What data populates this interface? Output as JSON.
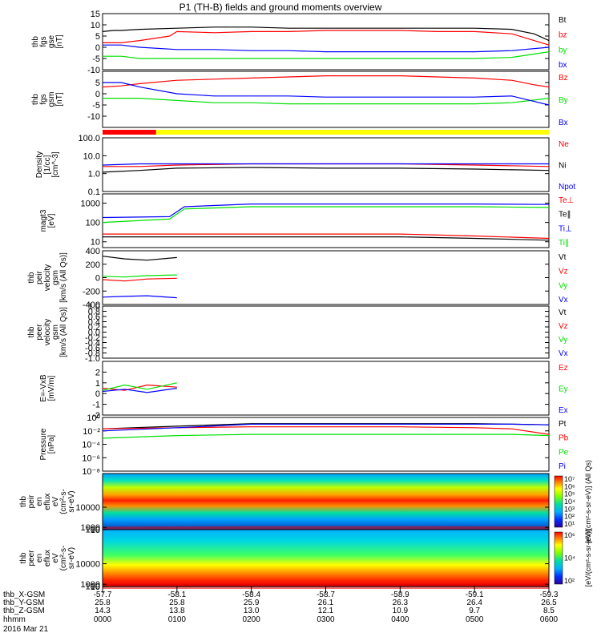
{
  "title": "P1 (TH-B) fields and ground moments overview",
  "colors": {
    "black": "#000000",
    "red": "#ff0000",
    "green": "#00e000",
    "blue": "#0000ff",
    "yellow": "#ffff00"
  },
  "chart_data": [
    {
      "type": "line",
      "id": "fgs_gse",
      "ylabel": [
        "thb",
        "fgs",
        "gse",
        "[nT]"
      ],
      "ylim": [
        -10,
        15
      ],
      "yticks": [
        {
          "v": 15,
          "l": "15"
        },
        {
          "v": 10,
          "l": "10"
        },
        {
          "v": 5,
          "l": "5"
        },
        {
          "v": 0,
          "l": "0"
        },
        {
          "v": -5,
          "l": "-5"
        },
        {
          "v": -10,
          "l": "-10"
        }
      ],
      "series": [
        {
          "name": "Bt",
          "color": "black",
          "x": [
            0,
            0.15,
            0.25,
            0.5,
            1,
            1.5,
            2,
            2.5,
            3,
            3.5,
            4,
            4.5,
            5,
            5.5,
            5.8,
            6
          ],
          "y": [
            7,
            7.5,
            7.5,
            8,
            8.5,
            9,
            9,
            8.5,
            8.5,
            8.5,
            8.5,
            8.5,
            8.5,
            8,
            6,
            3
          ]
        },
        {
          "name": "bz",
          "color": "red",
          "x": [
            0,
            0.25,
            0.5,
            0.9,
            1,
            1.5,
            2,
            2.5,
            3,
            3.5,
            4,
            4.5,
            5,
            5.5,
            5.8,
            6
          ],
          "y": [
            2,
            2,
            3,
            5,
            7,
            6.5,
            7,
            7,
            7.5,
            7.5,
            7.5,
            7,
            7,
            6,
            3,
            1
          ]
        },
        {
          "name": "by",
          "color": "green",
          "x": [
            0,
            0.25,
            0.5,
            1,
            1.5,
            2,
            2.5,
            3,
            3.5,
            4,
            4.5,
            5,
            5.5,
            6
          ],
          "y": [
            -4,
            -4,
            -5,
            -5,
            -5,
            -5,
            -5,
            -5,
            -5,
            -5,
            -5,
            -5,
            -4.5,
            -2
          ]
        },
        {
          "name": "bx",
          "color": "blue",
          "x": [
            0,
            0.25,
            0.5,
            1,
            1.5,
            2,
            2.5,
            3,
            3.5,
            4,
            4.5,
            5,
            5.5,
            6
          ],
          "y": [
            1,
            1,
            0,
            -1,
            -1,
            -1.5,
            -1.5,
            -2,
            -2,
            -2,
            -2,
            -2,
            -1.5,
            0
          ]
        }
      ]
    },
    {
      "type": "line",
      "id": "fgs_gsm",
      "ylabel": [
        "thb",
        "fgs",
        "gsm",
        "[nT]"
      ],
      "ylim": [
        -15,
        10
      ],
      "yticks": [
        {
          "v": 5,
          "l": "5"
        },
        {
          "v": 0,
          "l": "0"
        },
        {
          "v": -5,
          "l": "-5"
        },
        {
          "v": -10,
          "l": "-10"
        }
      ],
      "series": [
        {
          "name": "Bz",
          "color": "red",
          "x": [
            0,
            0.25,
            0.5,
            1,
            1.5,
            2,
            2.5,
            3,
            3.5,
            4,
            4.5,
            5,
            5.5,
            5.8,
            6
          ],
          "y": [
            3,
            3.5,
            4.5,
            6,
            6.5,
            7,
            7.5,
            8,
            8,
            8,
            7.5,
            7,
            6,
            4,
            3
          ]
        },
        {
          "name": "By",
          "color": "green",
          "x": [
            0,
            0.25,
            0.5,
            1,
            1.5,
            2,
            2.5,
            3,
            3.5,
            4,
            4.5,
            5,
            5.5,
            6
          ],
          "y": [
            -2,
            -2,
            -2,
            -3,
            -4,
            -4,
            -4.5,
            -4.5,
            -4.5,
            -4.5,
            -4.5,
            -4.5,
            -4,
            -2
          ]
        },
        {
          "name": "Bx",
          "color": "blue",
          "x": [
            0,
            0.25,
            0.5,
            1,
            1.5,
            2,
            2.5,
            3,
            3.5,
            4,
            4.5,
            5,
            5.5,
            6
          ],
          "y": [
            5,
            5,
            3,
            0,
            -1,
            -1,
            -1,
            -1.5,
            -1.5,
            -1.5,
            -1.5,
            -1.5,
            -1,
            -5
          ]
        }
      ]
    },
    {
      "type": "line",
      "id": "density",
      "log": true,
      "ylabel": [
        "Density",
        "[1/cc]",
        "[cm^-3]"
      ],
      "ylim": [
        0.1,
        100
      ],
      "yticks": [
        {
          "v": 100,
          "l": "100.0"
        },
        {
          "v": 10,
          "l": "10.0"
        },
        {
          "v": 1,
          "l": "1.0"
        },
        {
          "v": 0.1,
          "l": "0.1"
        }
      ],
      "series": [
        {
          "name": "Ne",
          "color": "red",
          "x": [
            0,
            0.5,
            1,
            2,
            3,
            4,
            5,
            6
          ],
          "y": [
            2.5,
            2.5,
            3,
            3.5,
            3.5,
            3.5,
            3,
            2.5
          ]
        },
        {
          "name": "Ni",
          "color": "black",
          "x": [
            0,
            0.5,
            1,
            2,
            3,
            4,
            5,
            6
          ],
          "y": [
            1.2,
            1.5,
            2,
            2.2,
            2,
            2,
            1.8,
            1.5
          ]
        },
        {
          "name": "Npot",
          "color": "blue",
          "x": [
            0,
            0.5,
            1,
            2,
            3,
            4,
            5,
            6
          ],
          "y": [
            3,
            3.5,
            3.5,
            3.5,
            3.5,
            3.5,
            3.5,
            3.5
          ]
        }
      ]
    },
    {
      "type": "line",
      "id": "temp",
      "log": true,
      "ylabel": [
        "magt3",
        "[eV]"
      ],
      "ylim": [
        5,
        3000
      ],
      "yticks": [
        {
          "v": 1000,
          "l": "1000"
        },
        {
          "v": 100,
          "l": "100"
        },
        {
          "v": 10,
          "l": "10"
        }
      ],
      "series": [
        {
          "name": "Te⊥",
          "color": "red",
          "x": [
            0,
            1,
            2,
            3,
            4,
            5,
            6
          ],
          "y": [
            25,
            25,
            25,
            25,
            25,
            20,
            15
          ]
        },
        {
          "name": "Te∥",
          "color": "black",
          "x": [
            0,
            1,
            2,
            3,
            4,
            5,
            6
          ],
          "y": [
            18,
            18,
            18,
            18,
            18,
            15,
            12
          ]
        },
        {
          "name": "Ti⊥",
          "color": "blue",
          "x": [
            0,
            0.9,
            1.1,
            2,
            3,
            4,
            5,
            6
          ],
          "y": [
            180,
            200,
            650,
            900,
            900,
            900,
            900,
            850
          ]
        },
        {
          "name": "Ti∥",
          "color": "green",
          "x": [
            0,
            0.9,
            1.1,
            2,
            3,
            4,
            5,
            6
          ],
          "y": [
            100,
            150,
            500,
            650,
            650,
            650,
            650,
            600
          ]
        }
      ]
    },
    {
      "type": "line",
      "id": "peir_vel",
      "ylabel": [
        "thb",
        "peir",
        "velocity",
        "gsm",
        "[km/s (All Qs)]"
      ],
      "ylim": [
        -400,
        400
      ],
      "yticks": [
        {
          "v": 400,
          "l": "400"
        },
        {
          "v": 200,
          "l": "200"
        },
        {
          "v": 0,
          "l": "0"
        },
        {
          "v": -200,
          "l": "-200"
        },
        {
          "v": -400,
          "l": "-400"
        }
      ],
      "series": [
        {
          "name": "Vt",
          "color": "black",
          "x": [
            0,
            0.3,
            0.6,
            1
          ],
          "y": [
            320,
            280,
            260,
            300
          ]
        },
        {
          "name": "Vz",
          "color": "red",
          "x": [
            0,
            0.3,
            0.6,
            1
          ],
          "y": [
            -30,
            -50,
            -20,
            -10
          ]
        },
        {
          "name": "Vy",
          "color": "green",
          "x": [
            0,
            0.3,
            0.6,
            1
          ],
          "y": [
            20,
            10,
            30,
            40
          ]
        },
        {
          "name": "Vx",
          "color": "blue",
          "x": [
            0,
            0.3,
            0.6,
            1
          ],
          "y": [
            -290,
            -280,
            -270,
            -300
          ]
        }
      ]
    },
    {
      "type": "line",
      "id": "peer_vel",
      "ylabel": [
        "thb",
        "peer",
        "velocity",
        "gsm",
        "[km/s (All Qs)]"
      ],
      "ylim": [
        -1,
        1
      ],
      "yticks": [
        {
          "v": 1,
          "l": "1.0"
        },
        {
          "v": 0.8,
          "l": "0.8"
        },
        {
          "v": 0.6,
          "l": "0.6"
        },
        {
          "v": 0.4,
          "l": "0.4"
        },
        {
          "v": 0.2,
          "l": "0.2"
        },
        {
          "v": 0,
          "l": "0.0"
        },
        {
          "v": -0.2,
          "l": "-0.2"
        },
        {
          "v": -0.4,
          "l": "-0.4"
        },
        {
          "v": -0.6,
          "l": "-0.6"
        },
        {
          "v": -0.8,
          "l": "-0.8"
        },
        {
          "v": -1,
          "l": "-1.0"
        }
      ],
      "series": [
        {
          "name": "Vt",
          "color": "black"
        },
        {
          "name": "Vz",
          "color": "red"
        },
        {
          "name": "Vy",
          "color": "green"
        },
        {
          "name": "Vx",
          "color": "blue"
        }
      ]
    },
    {
      "type": "line",
      "id": "efield",
      "ylabel": [
        "E=-VxB",
        "[mV/m]"
      ],
      "ylim": [
        -2,
        3
      ],
      "yticks": [
        {
          "v": 2,
          "l": "2"
        },
        {
          "v": 1,
          "l": "1"
        },
        {
          "v": 0,
          "l": "0"
        },
        {
          "v": -1,
          "l": "-1"
        },
        {
          "v": -2,
          "l": "-2"
        }
      ],
      "series": [
        {
          "name": "Ez",
          "color": "red",
          "x": [
            0,
            0.3,
            0.6,
            1
          ],
          "y": [
            0.5,
            0.3,
            0.8,
            0.6
          ]
        },
        {
          "name": "Ey",
          "color": "green",
          "x": [
            0,
            0.3,
            0.6,
            1
          ],
          "y": [
            0.3,
            0.8,
            0.4,
            1.0
          ]
        },
        {
          "name": "Ex",
          "color": "blue",
          "x": [
            0,
            0.3,
            0.6,
            1
          ],
          "y": [
            0.2,
            0.4,
            0.1,
            0.5
          ]
        }
      ]
    },
    {
      "type": "line",
      "id": "pressure",
      "log": true,
      "ylabel": [
        "Pressure",
        "[nPa]"
      ],
      "ylim": [
        1e-08,
        1
      ],
      "yticks": [
        {
          "v": 1,
          "l": "10⁰"
        },
        {
          "v": 0.01,
          "l": "10⁻²"
        },
        {
          "v": 0.0001,
          "l": "10⁻⁴"
        },
        {
          "v": 1e-06,
          "l": "10⁻⁶"
        },
        {
          "v": 1e-08,
          "l": "10⁻⁸"
        }
      ],
      "series": [
        {
          "name": "Pt",
          "color": "black",
          "x": [
            0,
            1,
            2,
            3,
            4,
            5,
            5.5,
            6
          ],
          "y": [
            0.02,
            0.05,
            0.12,
            0.12,
            0.12,
            0.12,
            0.1,
            0.08
          ]
        },
        {
          "name": "Pb",
          "color": "red",
          "x": [
            0,
            1,
            2,
            3,
            4,
            5,
            5.5,
            6
          ],
          "y": [
            0.02,
            0.03,
            0.04,
            0.04,
            0.04,
            0.03,
            0.02,
            0.003
          ]
        },
        {
          "name": "Pe",
          "color": "green",
          "x": [
            0,
            1,
            2,
            3,
            4,
            5,
            5.5,
            6
          ],
          "y": [
            0.0008,
            0.002,
            0.003,
            0.003,
            0.003,
            0.003,
            0.003,
            0.002
          ]
        },
        {
          "name": "Pi",
          "color": "blue",
          "x": [
            0,
            1,
            2,
            3,
            4,
            5,
            5.5,
            6
          ],
          "y": [
            0.01,
            0.03,
            0.1,
            0.1,
            0.1,
            0.1,
            0.1,
            0.08
          ]
        }
      ]
    },
    {
      "type": "heatmap",
      "id": "peir_spec",
      "ylabel": [
        "thb",
        "peir",
        "en",
        "eflux",
        "eV",
        "(cm²-s-",
        "sr-eV)"
      ],
      "ylim": [
        5,
        25000
      ],
      "yticks": [
        {
          "v": 10000,
          "l": "10000"
        },
        {
          "v": 1000,
          "l": "1000"
        },
        {
          "v": 100,
          "l": "100"
        },
        {
          "v": 10,
          "l": "10"
        }
      ],
      "colorbar": {
        "label": "[eV/(cm²-s-sr-eV)] (All Qs)",
        "ticks": [
          "10⁷",
          "10⁶",
          "10⁵",
          "10⁴",
          "10³",
          "10²",
          "10¹"
        ]
      },
      "peak_energy_eV": [
        {
          "x": 0,
          "e": 250
        },
        {
          "x": 1,
          "e": 350
        },
        {
          "x": 2,
          "e": 500
        },
        {
          "x": 3,
          "e": 500
        },
        {
          "x": 4,
          "e": 500
        },
        {
          "x": 5,
          "e": 450
        },
        {
          "x": 6,
          "e": 400
        }
      ]
    },
    {
      "type": "heatmap",
      "id": "peer_spec",
      "ylabel": [
        "thb",
        "peer",
        "en",
        "eflux",
        "eV",
        "(cm²-s-",
        "sr-eV)"
      ],
      "ylim": [
        5,
        25000
      ],
      "yticks": [
        {
          "v": 10000,
          "l": "10000"
        },
        {
          "v": 1000,
          "l": "1000"
        },
        {
          "v": 100,
          "l": "100"
        },
        {
          "v": 10,
          "l": "10"
        }
      ],
      "colorbar": {
        "label": "[eV/(cm²-s-sr-eV)]",
        "ticks": [
          "10⁶",
          "10⁴",
          "10²"
        ]
      },
      "peak_energy_eV": [
        {
          "x": 0,
          "e": 20
        },
        {
          "x": 3,
          "e": 20
        },
        {
          "x": 6,
          "e": 20
        }
      ]
    }
  ],
  "mode_bar": [
    {
      "from": 0,
      "to": 0.72,
      "color": "red"
    },
    {
      "from": 0.72,
      "to": 6,
      "color": "yellow"
    }
  ],
  "xaxis": {
    "rows": [
      {
        "name": "thb_X-GSM",
        "values": [
          "-57.7",
          "-58.1",
          "-58.4",
          "-58.7",
          "-58.9",
          "-59.1",
          "-59.3"
        ]
      },
      {
        "name": "thb_Y-GSM",
        "values": [
          "25.8",
          "25.8",
          "25.9",
          "26.1",
          "26.3",
          "26.4",
          "26.5"
        ]
      },
      {
        "name": "thb_Z-GSM",
        "values": [
          "14.3",
          "13.8",
          "13.0",
          "12.1",
          "10.9",
          "9.7",
          "8.5"
        ]
      },
      {
        "name": "hhmm",
        "values": [
          "0000",
          "0100",
          "0200",
          "0300",
          "0400",
          "0500",
          "0600"
        ]
      }
    ],
    "date": "2016 Mar 21"
  }
}
